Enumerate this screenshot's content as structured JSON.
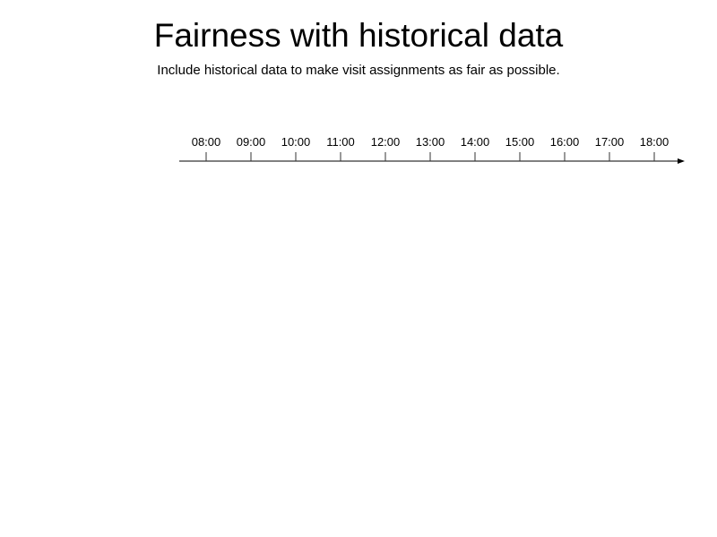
{
  "header": {
    "title": "Fairness with historical data",
    "subtitle": "Include historical data to make visit assignments as fair as possible."
  },
  "timeline": {
    "labels": [
      "08:00",
      "09:00",
      "10:00",
      "11:00",
      "12:00",
      "13:00",
      "14:00",
      "15:00",
      "16:00",
      "17:00",
      "18:00"
    ],
    "axis_color": "#000000",
    "tick_color": "#333333"
  }
}
